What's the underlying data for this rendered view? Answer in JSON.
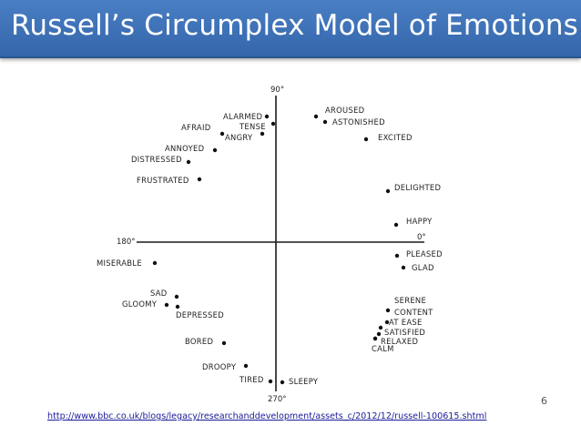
{
  "title": "Russell’s Circumplex Model of Emotions",
  "slide_number": "6",
  "source_link": "http://www.bbc.co.uk/blogs/legacy/researchanddevelopment/assets_c/2012/12/russell-100615.shtml",
  "diagram": {
    "axis_labels": {
      "top": "90°",
      "right": "0°",
      "left": "180°",
      "bottom": "270°"
    },
    "emotions": [
      "ALARMED",
      "TENSE",
      "AFRAID",
      "ANGRY",
      "ANNOYED",
      "DISTRESSED",
      "FRUSTRATED",
      "AROUSED",
      "ASTONISHED",
      "EXCITED",
      "DELIGHTED",
      "HAPPY",
      "PLEASED",
      "GLAD",
      "MISERABLE",
      "SAD",
      "GLOOMY",
      "DEPRESSED",
      "BORED",
      "DROOPY",
      "TIRED",
      "SLEEPY",
      "SERENE",
      "CONTENT",
      "AT EASE",
      "SATISFIED",
      "RELAXED",
      "CALM"
    ]
  }
}
